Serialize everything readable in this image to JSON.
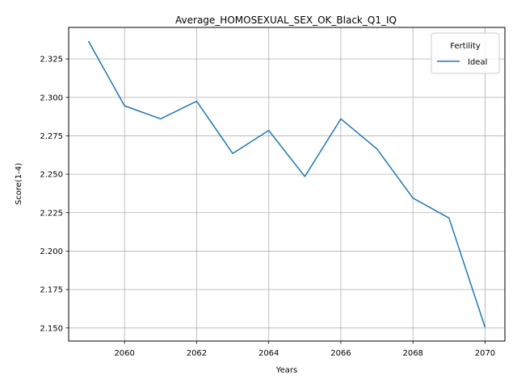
{
  "chart_data": {
    "type": "line",
    "title": "Average_HOMOSEXUAL_SEX_OK_Black_Q1_IQ",
    "xlabel": "Years",
    "ylabel": "Score(1-4)",
    "xlim": [
      2058.45,
      2070.55
    ],
    "ylim": [
      2.1415,
      2.3455
    ],
    "xticks": [
      2060,
      2062,
      2064,
      2066,
      2068,
      2070
    ],
    "yticks": [
      2.15,
      2.175,
      2.2,
      2.225,
      2.25,
      2.275,
      2.3,
      2.325
    ],
    "ytick_labels": [
      "2.150",
      "2.175",
      "2.200",
      "2.225",
      "2.250",
      "2.275",
      "2.300",
      "2.325"
    ],
    "grid": true,
    "legend": {
      "title": "Fertility",
      "placement": "top-right"
    },
    "series": [
      {
        "name": "Ideal",
        "color": "#1f77b4",
        "x": [
          2059,
          2060,
          2061,
          2062,
          2063,
          2064,
          2065,
          2066,
          2067,
          2068,
          2069,
          2070
        ],
        "y": [
          2.3365,
          2.2945,
          2.286,
          2.2975,
          2.2635,
          2.2785,
          2.2485,
          2.286,
          2.2665,
          2.2345,
          2.2215,
          2.1505
        ]
      }
    ]
  }
}
